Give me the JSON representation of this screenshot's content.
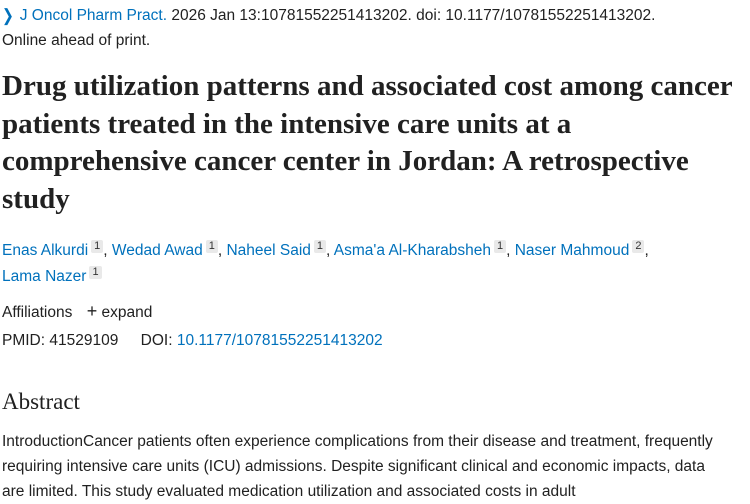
{
  "citation": {
    "journal": "J Oncol Pharm Pract.",
    "details": " 2026 Jan 13:10781552251413202. doi: 10.1177/10781552251413202.",
    "status": "Online ahead of print."
  },
  "title": "Drug utilization patterns and associated cost among cancer patients treated in the intensive care units at a comprehensive cancer center in Jordan: A retrospective study",
  "authors": [
    {
      "name": "Enas Alkurdi",
      "aff": "1"
    },
    {
      "name": "Wedad Awad",
      "aff": "1"
    },
    {
      "name": "Naheel Said",
      "aff": "1"
    },
    {
      "name": "Asma'a Al-Kharabsheh",
      "aff": "1"
    },
    {
      "name": "Naser Mahmoud",
      "aff": "2"
    },
    {
      "name": "Lama Nazer",
      "aff": "1"
    }
  ],
  "affiliations": {
    "label": "Affiliations",
    "expand_label": "expand"
  },
  "ids": {
    "pmid_label": "PMID:",
    "pmid": "41529109",
    "doi_label": "DOI:",
    "doi": "10.1177/10781552251413202"
  },
  "abstract": {
    "heading": "Abstract",
    "text": "IntroductionCancer patients often experience complications from their disease and treatment, frequently requiring intensive care units (ICU) admissions. Despite significant clinical and economic impacts, data are limited. This study evaluated medication utilization and associated costs in adult"
  }
}
